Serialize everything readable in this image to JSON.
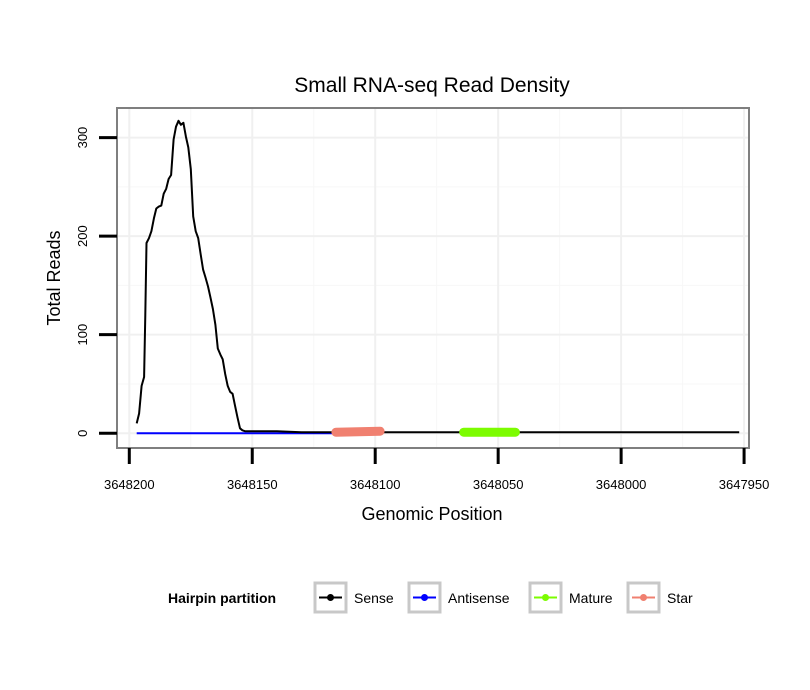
{
  "chart_data": {
    "type": "line",
    "title": "Small RNA-seq Read Density",
    "xlabel": "Genomic Position",
    "ylabel": "Total Reads",
    "xlim": [
      3648205,
      3647948
    ],
    "ylim": [
      -15,
      330
    ],
    "x_reversed": true,
    "x_ticks": [
      3648200,
      3648150,
      3648100,
      3648050,
      3648000,
      3647950
    ],
    "x_tick_labels": [
      "3648200",
      "3648150",
      "3648100",
      "3648050",
      "3648000",
      "3647950"
    ],
    "y_ticks": [
      0,
      100,
      200,
      300
    ],
    "y_tick_labels": [
      "0",
      "100",
      "200",
      "300"
    ],
    "grid": true,
    "legend": {
      "title": "Hairpin partition",
      "position": "bottom",
      "entries": [
        "Sense",
        "Antisense",
        "Mature",
        "Star"
      ]
    },
    "series": [
      {
        "name": "Sense",
        "color": "#000000",
        "x": [
          3648197,
          3648196,
          3648195,
          3648194,
          3648193.5,
          3648193,
          3648192,
          3648191,
          3648190,
          3648189,
          3648188,
          3648187,
          3648186,
          3648185,
          3648184,
          3648183,
          3648182,
          3648181,
          3648180,
          3648179,
          3648178,
          3648177,
          3648176,
          3648175,
          3648174,
          3648173,
          3648172,
          3648171,
          3648170,
          3648169,
          3648168,
          3648167,
          3648166,
          3648165,
          3648164,
          3648163,
          3648162,
          3648161,
          3648160,
          3648159,
          3648158,
          3648157,
          3648156,
          3648155,
          3648154,
          3648153,
          3648152,
          3648151,
          3648150,
          3648140,
          3648130,
          3648120,
          3648110,
          3648100,
          3648090,
          3648080,
          3648060,
          3648040,
          3648020,
          3648000,
          3647980,
          3647952
        ],
        "y": [
          10,
          20,
          48,
          57,
          120,
          193,
          198,
          205,
          218,
          228,
          230,
          231,
          243,
          248,
          258,
          262,
          298,
          311,
          317,
          313,
          315,
          301,
          290,
          268,
          220,
          205,
          198,
          182,
          166,
          158,
          149,
          138,
          126,
          110,
          86,
          80,
          75,
          60,
          48,
          42,
          40,
          28,
          16,
          5,
          3,
          2,
          2,
          2,
          2,
          2,
          1,
          1,
          1,
          1,
          1,
          1,
          1,
          1,
          1,
          1,
          1,
          1
        ]
      },
      {
        "name": "Antisense",
        "color": "#0000ff",
        "x": [
          3648197,
          3648150,
          3648100
        ],
        "y": [
          0,
          0,
          0
        ]
      },
      {
        "name": "Mature",
        "color": "#7cfc00",
        "x": [
          3648064,
          3648043
        ],
        "y": [
          1,
          1
        ]
      },
      {
        "name": "Star",
        "color": "#f08070",
        "x": [
          3648116,
          3648098
        ],
        "y": [
          1,
          2
        ]
      }
    ]
  }
}
